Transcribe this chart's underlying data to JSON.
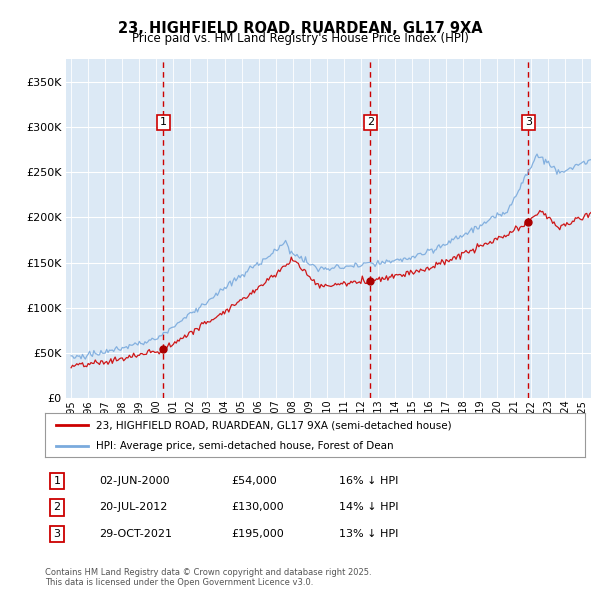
{
  "title": "23, HIGHFIELD ROAD, RUARDEAN, GL17 9XA",
  "subtitle": "Price paid vs. HM Land Registry's House Price Index (HPI)",
  "legend_line1": "23, HIGHFIELD ROAD, RUARDEAN, GL17 9XA (semi-detached house)",
  "legend_line2": "HPI: Average price, semi-detached house, Forest of Dean",
  "transactions": [
    {
      "num": 1,
      "date": "02-JUN-2000",
      "price": 54000,
      "pct": "16%",
      "x": 2000.42,
      "marker_y": 54000
    },
    {
      "num": 2,
      "date": "20-JUL-2012",
      "price": 130000,
      "pct": "14%",
      "x": 2012.55,
      "marker_y": 130000
    },
    {
      "num": 3,
      "date": "29-OCT-2021",
      "price": 195000,
      "pct": "13%",
      "x": 2021.83,
      "marker_y": 195000
    }
  ],
  "table_rows": [
    [
      "1",
      "02-JUN-2000",
      "£54,000",
      "16% ↓ HPI"
    ],
    [
      "2",
      "20-JUL-2012",
      "£130,000",
      "14% ↓ HPI"
    ],
    [
      "3",
      "29-OCT-2021",
      "£195,000",
      "13% ↓ HPI"
    ]
  ],
  "footnote": "Contains HM Land Registry data © Crown copyright and database right 2025.\nThis data is licensed under the Open Government Licence v3.0.",
  "ylim": [
    0,
    375000
  ],
  "yticks": [
    0,
    50000,
    100000,
    150000,
    200000,
    250000,
    300000,
    350000
  ],
  "xlim": [
    1994.7,
    2025.5
  ],
  "background_color": "#dce9f5",
  "grid_color": "#ffffff",
  "red_line_color": "#cc0000",
  "blue_line_color": "#7aaadd",
  "vline_color": "#cc0000",
  "box_color": "#cc0000",
  "marker_color": "#aa0000"
}
